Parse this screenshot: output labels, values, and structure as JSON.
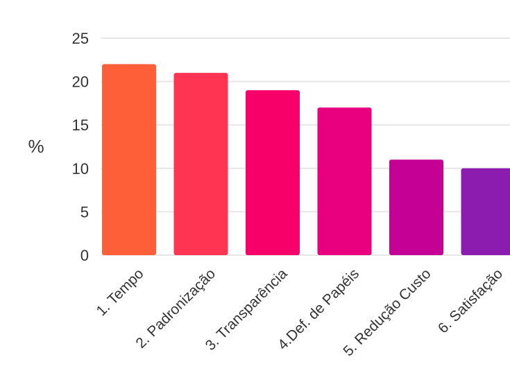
{
  "chart_data": {
    "type": "bar",
    "title": "",
    "xlabel": "",
    "ylabel": "%",
    "ylim": [
      0,
      25
    ],
    "yticks": [
      0,
      5,
      10,
      15,
      20,
      25
    ],
    "grid": true,
    "categories": [
      "1. Tempo",
      "2. Padronização",
      "3. Transparência",
      "4.Def. de Papéis",
      "5. Redução Custo",
      "6. Satisfação"
    ],
    "values": [
      22,
      21,
      19,
      17,
      11,
      10
    ],
    "colors": [
      "#FF5F38",
      "#FF3352",
      "#F7006A",
      "#E8007F",
      "#C50094",
      "#8C1BB0"
    ],
    "grid_color": "#E6E6E6"
  }
}
